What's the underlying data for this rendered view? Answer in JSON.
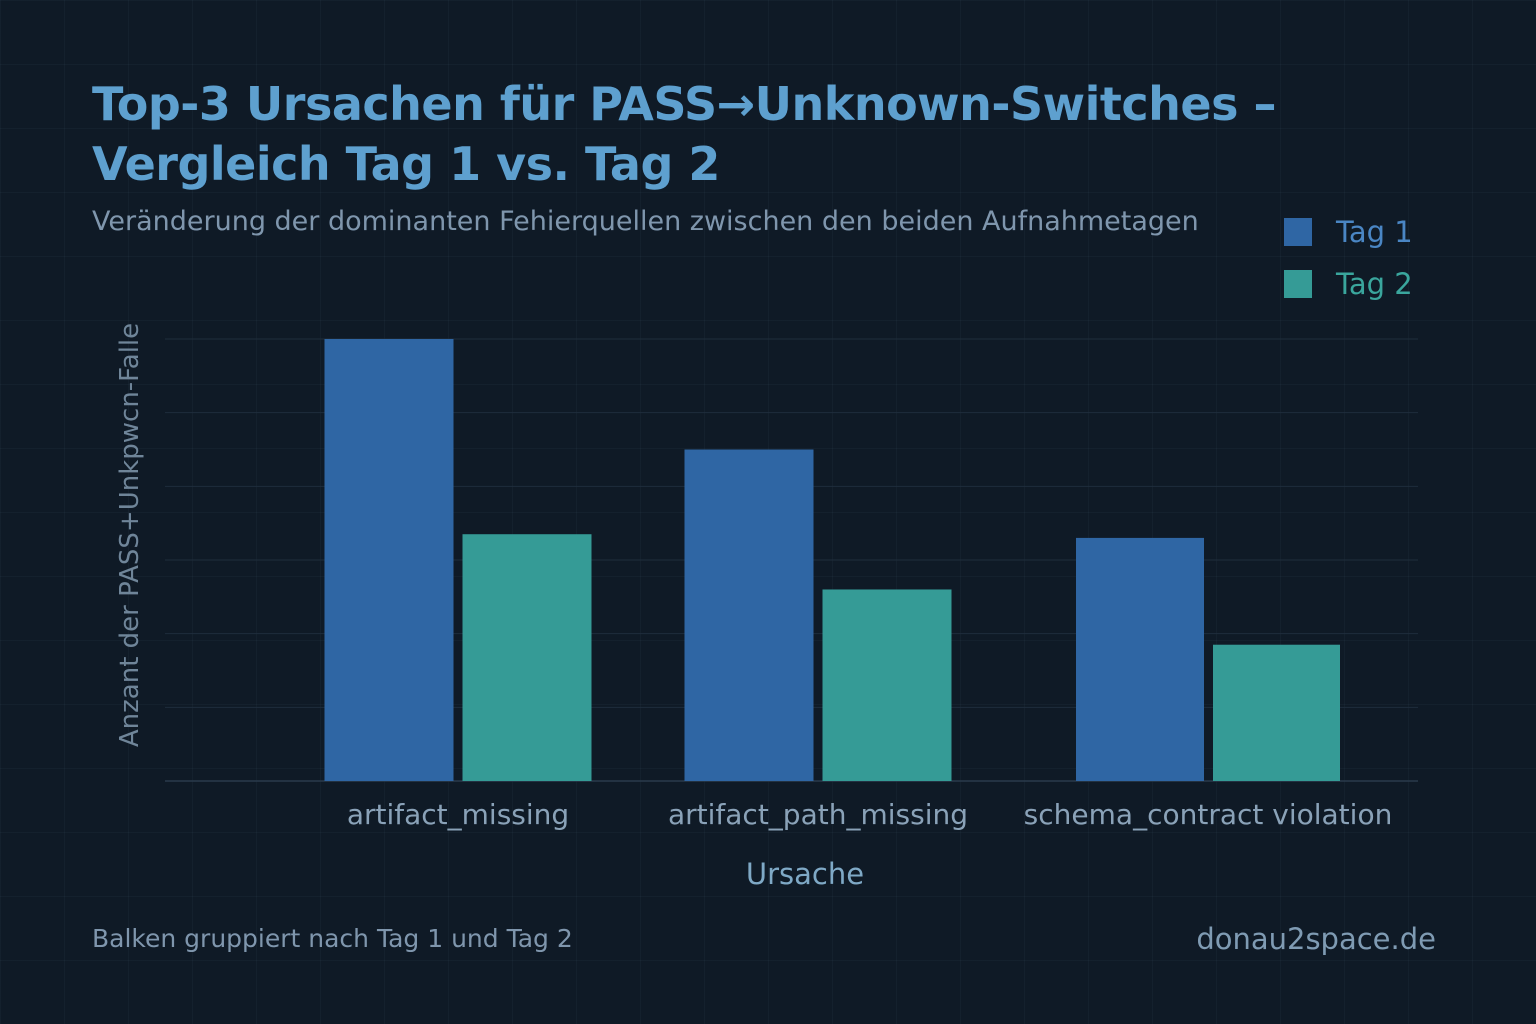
{
  "chart_data": {
    "type": "bar",
    "title": "Top-3 Ursachen für PASS→Unknown-Switches – Vergleich Tag 1 vs. Tag 2",
    "subtitle": "Veränderung der dominanten Fehierquellen zwischen den beiden Aufnahmetagen",
    "xlabel": "Ursache",
    "ylabel": "Anzant der PASS+Unkpwcn-Falle",
    "categories": [
      "artifact_missing",
      "artifact_path_missing",
      "schema_contract violation"
    ],
    "series": [
      {
        "name": "Tag 1",
        "values": [
          6.0,
          4.5,
          3.3
        ],
        "color": "#2f66a4"
      },
      {
        "name": "Tag 2",
        "values": [
          3.35,
          2.6,
          1.85
        ],
        "color": "#359b96"
      }
    ],
    "ylim": [
      0,
      6
    ],
    "grid": true,
    "legend": "top-right"
  },
  "footnote": "Balken gruppiert nach Tag 1 und Tag 2",
  "brand": "donau2space.de",
  "colors": {
    "background": "#0f1a26",
    "title": "#5ea0cf",
    "legend_tag1_text": "#4a86c4",
    "legend_tag2_text": "#3aa69d"
  }
}
